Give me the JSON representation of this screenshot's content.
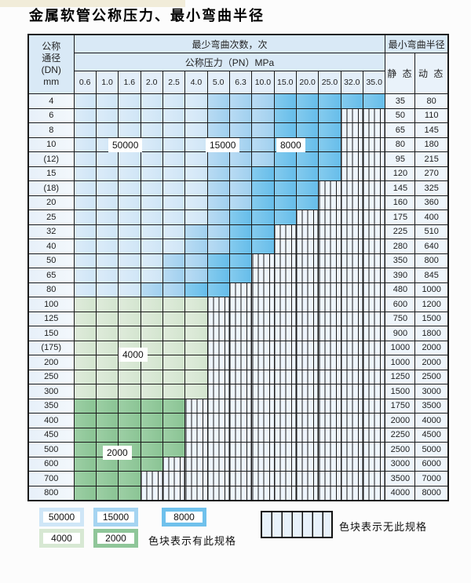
{
  "page": {
    "title": "金属软管公称压力、最小弯曲半径"
  },
  "table": {
    "header": {
      "dn_lines": [
        "公称",
        "通径",
        "(DN)",
        "mm"
      ],
      "bend_cycles_label": "最少弯曲次数，次",
      "pressure_label": "公称压力（PN）MPa",
      "min_bend_radius_label": "最小弯曲半径",
      "static_label": "静 态",
      "dynamic_label": "动 态"
    },
    "pressure_columns": [
      "0.6",
      "1.0",
      "1.6",
      "2.0",
      "2.5",
      "4.0",
      "5.0",
      "6.3",
      "10.0",
      "15.0",
      "20.0",
      "25.0",
      "32.0",
      "35.0"
    ],
    "rows": [
      {
        "dn": "4",
        "static": "35",
        "dynamic": "80",
        "max_col": 13,
        "zones": [
          {
            "start": 0,
            "cycles": "50000"
          },
          {
            "start": 6,
            "cycles": "15000"
          },
          {
            "start": 9,
            "cycles": "8000"
          }
        ]
      },
      {
        "dn": "6",
        "static": "50",
        "dynamic": "110",
        "max_col": 11,
        "zones": [
          {
            "start": 0,
            "cycles": "50000"
          },
          {
            "start": 6,
            "cycles": "15000"
          },
          {
            "start": 9,
            "cycles": "8000"
          }
        ]
      },
      {
        "dn": "8",
        "static": "65",
        "dynamic": "145",
        "max_col": 11,
        "zones": [
          {
            "start": 0,
            "cycles": "50000"
          },
          {
            "start": 6,
            "cycles": "15000"
          },
          {
            "start": 9,
            "cycles": "8000"
          }
        ]
      },
      {
        "dn": "10",
        "static": "80",
        "dynamic": "180",
        "max_col": 11,
        "zones": [
          {
            "start": 0,
            "cycles": "50000"
          },
          {
            "start": 6,
            "cycles": "15000"
          },
          {
            "start": 9,
            "cycles": "8000"
          }
        ]
      },
      {
        "dn": "(12)",
        "static": "95",
        "dynamic": "215",
        "max_col": 11,
        "zones": [
          {
            "start": 0,
            "cycles": "50000"
          },
          {
            "start": 6,
            "cycles": "15000"
          },
          {
            "start": 9,
            "cycles": "8000"
          }
        ]
      },
      {
        "dn": "15",
        "static": "120",
        "dynamic": "270",
        "max_col": 11,
        "zones": [
          {
            "start": 0,
            "cycles": "50000"
          },
          {
            "start": 6,
            "cycles": "15000"
          },
          {
            "start": 8,
            "cycles": "8000"
          }
        ]
      },
      {
        "dn": "(18)",
        "static": "145",
        "dynamic": "325",
        "max_col": 10,
        "zones": [
          {
            "start": 0,
            "cycles": "50000"
          },
          {
            "start": 6,
            "cycles": "15000"
          },
          {
            "start": 8,
            "cycles": "8000"
          }
        ]
      },
      {
        "dn": "20",
        "static": "160",
        "dynamic": "360",
        "max_col": 10,
        "zones": [
          {
            "start": 0,
            "cycles": "50000"
          },
          {
            "start": 6,
            "cycles": "15000"
          },
          {
            "start": 8,
            "cycles": "8000"
          }
        ]
      },
      {
        "dn": "25",
        "static": "175",
        "dynamic": "400",
        "max_col": 9,
        "zones": [
          {
            "start": 0,
            "cycles": "50000"
          },
          {
            "start": 6,
            "cycles": "15000"
          },
          {
            "start": 7,
            "cycles": "8000"
          }
        ]
      },
      {
        "dn": "32",
        "static": "225",
        "dynamic": "510",
        "max_col": 8,
        "zones": [
          {
            "start": 0,
            "cycles": "50000"
          },
          {
            "start": 5,
            "cycles": "15000"
          },
          {
            "start": 7,
            "cycles": "8000"
          }
        ]
      },
      {
        "dn": "40",
        "static": "280",
        "dynamic": "640",
        "max_col": 8,
        "zones": [
          {
            "start": 0,
            "cycles": "50000"
          },
          {
            "start": 5,
            "cycles": "15000"
          },
          {
            "start": 7,
            "cycles": "8000"
          }
        ]
      },
      {
        "dn": "50",
        "static": "350",
        "dynamic": "800",
        "max_col": 7,
        "zones": [
          {
            "start": 0,
            "cycles": "50000"
          },
          {
            "start": 4,
            "cycles": "15000"
          },
          {
            "start": 6,
            "cycles": "8000"
          }
        ]
      },
      {
        "dn": "65",
        "static": "390",
        "dynamic": "845",
        "max_col": 7,
        "zones": [
          {
            "start": 0,
            "cycles": "50000"
          },
          {
            "start": 4,
            "cycles": "15000"
          },
          {
            "start": 6,
            "cycles": "8000"
          }
        ]
      },
      {
        "dn": "80",
        "static": "480",
        "dynamic": "1000",
        "max_col": 6,
        "zones": [
          {
            "start": 0,
            "cycles": "50000"
          },
          {
            "start": 3,
            "cycles": "15000"
          },
          {
            "start": 5,
            "cycles": "8000"
          }
        ]
      },
      {
        "dn": "100",
        "static": "600",
        "dynamic": "1200",
        "max_col": 5,
        "zones": [
          {
            "start": 0,
            "cycles": "4000"
          }
        ]
      },
      {
        "dn": "125",
        "static": "750",
        "dynamic": "1500",
        "max_col": 5,
        "zones": [
          {
            "start": 0,
            "cycles": "4000"
          }
        ]
      },
      {
        "dn": "150",
        "static": "900",
        "dynamic": "1800",
        "max_col": 5,
        "zones": [
          {
            "start": 0,
            "cycles": "4000"
          }
        ]
      },
      {
        "dn": "(175)",
        "static": "1000",
        "dynamic": "2000",
        "max_col": 5,
        "zones": [
          {
            "start": 0,
            "cycles": "4000"
          }
        ]
      },
      {
        "dn": "200",
        "static": "1000",
        "dynamic": "2000",
        "max_col": 5,
        "zones": [
          {
            "start": 0,
            "cycles": "4000"
          }
        ]
      },
      {
        "dn": "250",
        "static": "1250",
        "dynamic": "2500",
        "max_col": 5,
        "zones": [
          {
            "start": 0,
            "cycles": "4000"
          }
        ]
      },
      {
        "dn": "300",
        "static": "1500",
        "dynamic": "3000",
        "max_col": 5,
        "zones": [
          {
            "start": 0,
            "cycles": "4000"
          }
        ]
      },
      {
        "dn": "350",
        "static": "1750",
        "dynamic": "3500",
        "max_col": 4,
        "zones": [
          {
            "start": 0,
            "cycles": "2000"
          }
        ]
      },
      {
        "dn": "400",
        "static": "2000",
        "dynamic": "4000",
        "max_col": 4,
        "zones": [
          {
            "start": 0,
            "cycles": "2000"
          }
        ]
      },
      {
        "dn": "450",
        "static": "2250",
        "dynamic": "4500",
        "max_col": 4,
        "zones": [
          {
            "start": 0,
            "cycles": "2000"
          }
        ]
      },
      {
        "dn": "500",
        "static": "2500",
        "dynamic": "5000",
        "max_col": 4,
        "zones": [
          {
            "start": 0,
            "cycles": "2000"
          }
        ]
      },
      {
        "dn": "600",
        "static": "3000",
        "dynamic": "6000",
        "max_col": 3,
        "zones": [
          {
            "start": 0,
            "cycles": "2000"
          }
        ]
      },
      {
        "dn": "700",
        "static": "3500",
        "dynamic": "7000",
        "max_col": 2,
        "zones": [
          {
            "start": 0,
            "cycles": "2000"
          }
        ]
      },
      {
        "dn": "800",
        "static": "4000",
        "dynamic": "8000",
        "max_col": 2,
        "zones": [
          {
            "start": 0,
            "cycles": "2000"
          }
        ]
      }
    ]
  },
  "overlay_labels": [
    "50000",
    "15000",
    "8000",
    "4000",
    "2000"
  ],
  "legend": {
    "swatches": [
      "50000",
      "15000",
      "8000",
      "4000",
      "2000"
    ],
    "has_spec_note": "色块表示有此规格",
    "no_spec_note": "色块表示无此规格"
  },
  "colors": {
    "cycles_50000": "#d5e9f8",
    "cycles_15000": "#a9d5f0",
    "cycles_8000": "#72c2ec",
    "cycles_4000": "#d9e8d5",
    "cycles_2000": "#94c89e",
    "no_spec_bg": "#eef5fc",
    "header_bg": "#d9e9f6",
    "border": "#1a1a1a"
  }
}
